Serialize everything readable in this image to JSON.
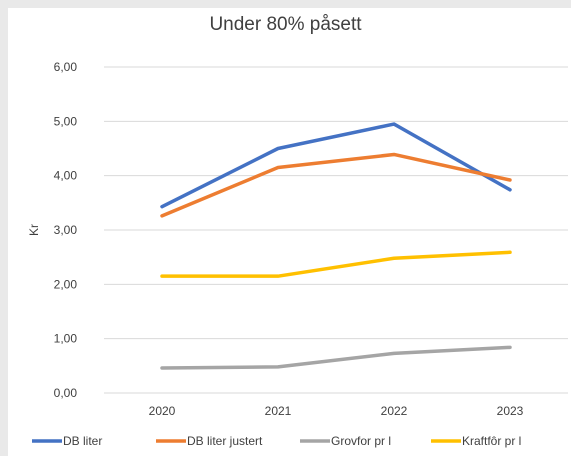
{
  "chart_data": {
    "type": "line",
    "title": "Under 80% påsett",
    "xlabel": "",
    "ylabel": "Kr",
    "categories": [
      "2020",
      "2021",
      "2022",
      "2023"
    ],
    "ylim": [
      0,
      6
    ],
    "yticks": [
      "0,00",
      "1,00",
      "2,00",
      "3,00",
      "4,00",
      "5,00",
      "6,00"
    ],
    "grid": true,
    "legend_position": "bottom",
    "series": [
      {
        "name": "DB liter",
        "color": "#4472C4",
        "values": [
          3.43,
          4.5,
          4.95,
          3.74
        ]
      },
      {
        "name": "DB liter justert",
        "color": "#ED7D31",
        "values": [
          3.26,
          4.15,
          4.39,
          3.92
        ]
      },
      {
        "name": "Grovfor pr l",
        "color": "#A5A5A5",
        "values": [
          0.46,
          0.48,
          0.73,
          0.84
        ]
      },
      {
        "name": "Kraftfôr pr l",
        "color": "#FFC000",
        "values": [
          2.15,
          2.15,
          2.48,
          2.59
        ]
      }
    ]
  }
}
